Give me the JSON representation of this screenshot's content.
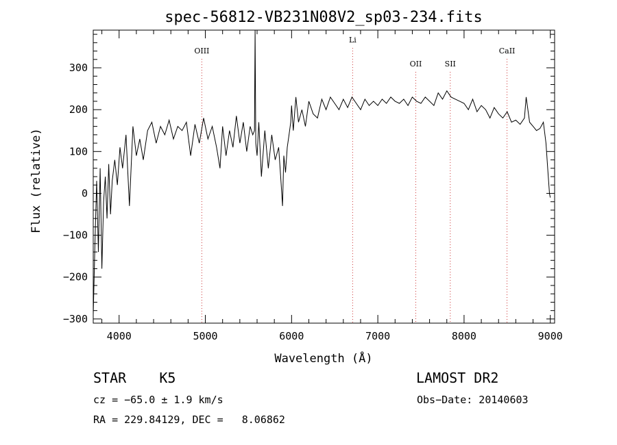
{
  "chart_data": {
    "type": "line",
    "title": "spec-56812-VB231N08V2_sp03-234.fits",
    "xlabel": "Wavelength (Å)",
    "ylabel": "Flux (relative)",
    "xlim": [
      3700,
      9050
    ],
    "ylim": [
      -310,
      390
    ],
    "xticks": [
      4000,
      5000,
      6000,
      7000,
      8000,
      9000
    ],
    "yticks": [
      -300,
      -200,
      -100,
      0,
      100,
      200,
      300
    ],
    "grid": false,
    "line_color": "#000000",
    "marker_color": "#cc3333",
    "lines": [
      {
        "label": "OIII",
        "x": 4959
      },
      {
        "label": "Li",
        "x": 6708
      },
      {
        "label": "OII",
        "x": 7440
      },
      {
        "label": "SII",
        "x": 7840
      },
      {
        "label": "CaII",
        "x": 8498
      }
    ],
    "series": [
      {
        "x": [
          3700,
          3720,
          3740,
          3760,
          3780,
          3800,
          3820,
          3840,
          3860,
          3880,
          3900,
          3920,
          3950,
          3980,
          4010,
          4040,
          4080,
          4120,
          4160,
          4200,
          4240,
          4280,
          4330,
          4380,
          4430,
          4480,
          4530,
          4580,
          4630,
          4680,
          4730,
          4780,
          4830,
          4880,
          4930,
          4980,
          5030,
          5080,
          5130,
          5170,
          5200,
          5240,
          5280,
          5320,
          5360,
          5400,
          5440,
          5480,
          5520,
          5550,
          5570,
          5577,
          5585,
          5600,
          5620,
          5650,
          5690,
          5730,
          5770,
          5810,
          5850,
          5880,
          5895,
          5910,
          5930,
          5950,
          5970,
          5990,
          6000,
          6020,
          6050,
          6080,
          6120,
          6160,
          6200,
          6250,
          6300,
          6350,
          6400,
          6450,
          6500,
          6550,
          6600,
          6650,
          6700,
          6750,
          6800,
          6850,
          6900,
          6950,
          7000,
          7050,
          7100,
          7150,
          7200,
          7250,
          7300,
          7350,
          7400,
          7450,
          7500,
          7550,
          7600,
          7650,
          7700,
          7750,
          7800,
          7850,
          7900,
          7950,
          8000,
          8050,
          8100,
          8150,
          8200,
          8250,
          8300,
          8350,
          8400,
          8450,
          8500,
          8550,
          8600,
          8650,
          8700,
          8720,
          8760,
          8800,
          8840,
          8880,
          8920,
          8950,
          8970,
          8990,
          9000
        ],
        "y": [
          -290,
          -120,
          30,
          -140,
          60,
          -180,
          -20,
          40,
          -60,
          70,
          -50,
          30,
          80,
          20,
          110,
          60,
          140,
          -30,
          160,
          90,
          130,
          80,
          150,
          170,
          120,
          160,
          140,
          175,
          130,
          160,
          150,
          170,
          90,
          165,
          120,
          180,
          130,
          160,
          110,
          60,
          160,
          90,
          150,
          110,
          185,
          120,
          170,
          100,
          160,
          140,
          150,
          390,
          120,
          90,
          170,
          40,
          150,
          60,
          140,
          80,
          110,
          20,
          -30,
          90,
          50,
          110,
          140,
          170,
          210,
          150,
          230,
          170,
          200,
          160,
          220,
          190,
          180,
          225,
          200,
          230,
          215,
          200,
          225,
          205,
          230,
          215,
          200,
          225,
          210,
          220,
          210,
          225,
          215,
          230,
          220,
          215,
          225,
          210,
          230,
          220,
          215,
          230,
          220,
          210,
          240,
          225,
          245,
          230,
          225,
          220,
          215,
          200,
          225,
          195,
          210,
          200,
          180,
          205,
          190,
          180,
          195,
          170,
          175,
          165,
          180,
          230,
          170,
          160,
          150,
          155,
          170,
          120,
          60,
          0,
          -10
        ]
      }
    ]
  },
  "footer": {
    "object": "STAR    K5",
    "survey": "LAMOST DR2",
    "cz": "cz = −65.0 ± 1.9 km/s",
    "obs_date": "Obs−Date: 20140603",
    "coords": "RA = 229.84129, DEC =   8.06862"
  }
}
